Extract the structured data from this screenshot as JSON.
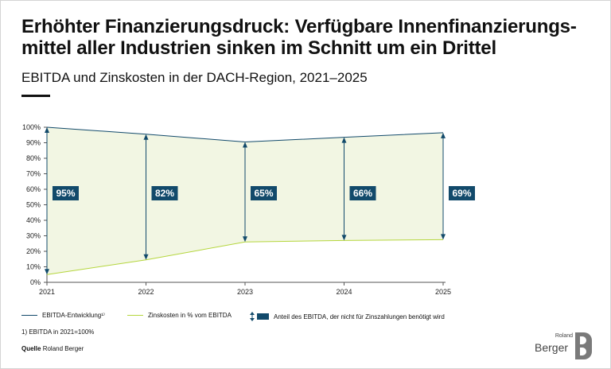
{
  "title": "Erhöhter Finanzierungsdruck: Verfügbare Innenfinanzierungs-mittel aller Industrien sinken im Schnitt um ein Drittel",
  "subtitle": "EBITDA und Zinskosten in der DACH-Region, 2021–2025",
  "colors": {
    "ebitda": "#124a6b",
    "interest": "#b5d63d",
    "fill": "#f2f6e3",
    "axis": "#333333"
  },
  "chart_data": {
    "type": "area",
    "x": [
      "2021",
      "2022",
      "2023",
      "2024",
      "2025"
    ],
    "ylim": [
      0,
      100
    ],
    "yticks": [
      "0%",
      "10%",
      "20%",
      "30%",
      "40%",
      "50%",
      "60%",
      "70%",
      "80%",
      "90%",
      "100%"
    ],
    "grid": false,
    "series": [
      {
        "name": "EBITDA-Entwicklung¹⁾",
        "values": [
          100,
          95.5,
          90.5,
          93.5,
          96.5
        ]
      },
      {
        "name": "Zinskosten in % vom EBITDA",
        "values": [
          5,
          14.5,
          26,
          27,
          27.5
        ]
      }
    ],
    "labels": [
      "95%",
      "82%",
      "65%",
      "66%",
      "69%"
    ]
  },
  "legend": {
    "ebitda": "EBITDA-Entwicklung¹⁾",
    "interest": "Zinskosten in % vom EBITDA",
    "share": "Anteil des EBITDA, der nicht für Zinszahlungen benötigt wird"
  },
  "footnote": "1) EBITDA in 2021=100%",
  "source": {
    "label": "Quelle",
    "text": "Roland Berger"
  },
  "logo": {
    "small": "Roland",
    "big": "Berger"
  }
}
